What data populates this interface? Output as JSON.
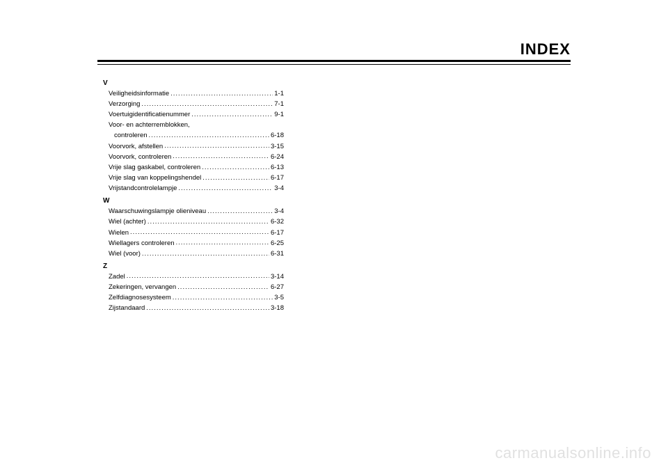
{
  "title": "INDEX",
  "watermark": "carmanualsonline.info",
  "sections": [
    {
      "letter": "V",
      "entries": [
        {
          "label": "Veiligheidsinformatie",
          "page": "1-1"
        },
        {
          "label": "Verzorging",
          "page": "7-1"
        },
        {
          "label": "Voertuigidentificatienummer",
          "page": "9-1"
        },
        {
          "label": "Voor- en achterremblokken,",
          "page": ""
        },
        {
          "label": "controleren",
          "page": "6-18",
          "cont": true
        },
        {
          "label": "Voorvork, afstellen",
          "page": "3-15"
        },
        {
          "label": "Voorvork, controleren",
          "page": "6-24"
        },
        {
          "label": "Vrije slag gaskabel, controleren",
          "page": "6-13"
        },
        {
          "label": "Vrije slag van koppelingshendel",
          "page": "6-17"
        },
        {
          "label": "Vrijstandcontrolelampje",
          "page": "3-4"
        }
      ]
    },
    {
      "letter": "W",
      "entries": [
        {
          "label": "Waarschuwingslampje olieniveau",
          "page": "3-4"
        },
        {
          "label": "Wiel (achter)",
          "page": "6-32"
        },
        {
          "label": "Wielen",
          "page": "6-17"
        },
        {
          "label": "Wiellagers controleren",
          "page": "6-25"
        },
        {
          "label": "Wiel (voor)",
          "page": "6-31"
        }
      ]
    },
    {
      "letter": "Z",
      "entries": [
        {
          "label": "Zadel",
          "page": "3-14"
        },
        {
          "label": "Zekeringen, vervangen",
          "page": "6-27"
        },
        {
          "label": "Zelfdiagnosesysteem",
          "page": "3-5"
        },
        {
          "label": "Zijstandaard",
          "page": "3-18"
        }
      ]
    }
  ]
}
